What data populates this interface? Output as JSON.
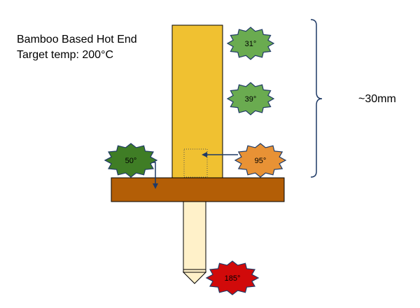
{
  "title": "Bamboo Based Hot End",
  "subtitle": "Target temp: 200°C",
  "dimension_label": "~30mm",
  "colors": {
    "bamboo": "#f0c131",
    "plate": "#b35e06",
    "nozzle": "#fff1c9",
    "badge_cool": "#6aab50",
    "badge_mid": "#3f7d25",
    "badge_warm": "#e89235",
    "badge_hot": "#d10a0a",
    "outline": "#1f3a66",
    "arrow": "#1f3a66"
  },
  "temperatures": {
    "top": "31°",
    "middle": "39°",
    "bamboo_base": "95°",
    "plate": "50°",
    "nozzle": "185°"
  }
}
